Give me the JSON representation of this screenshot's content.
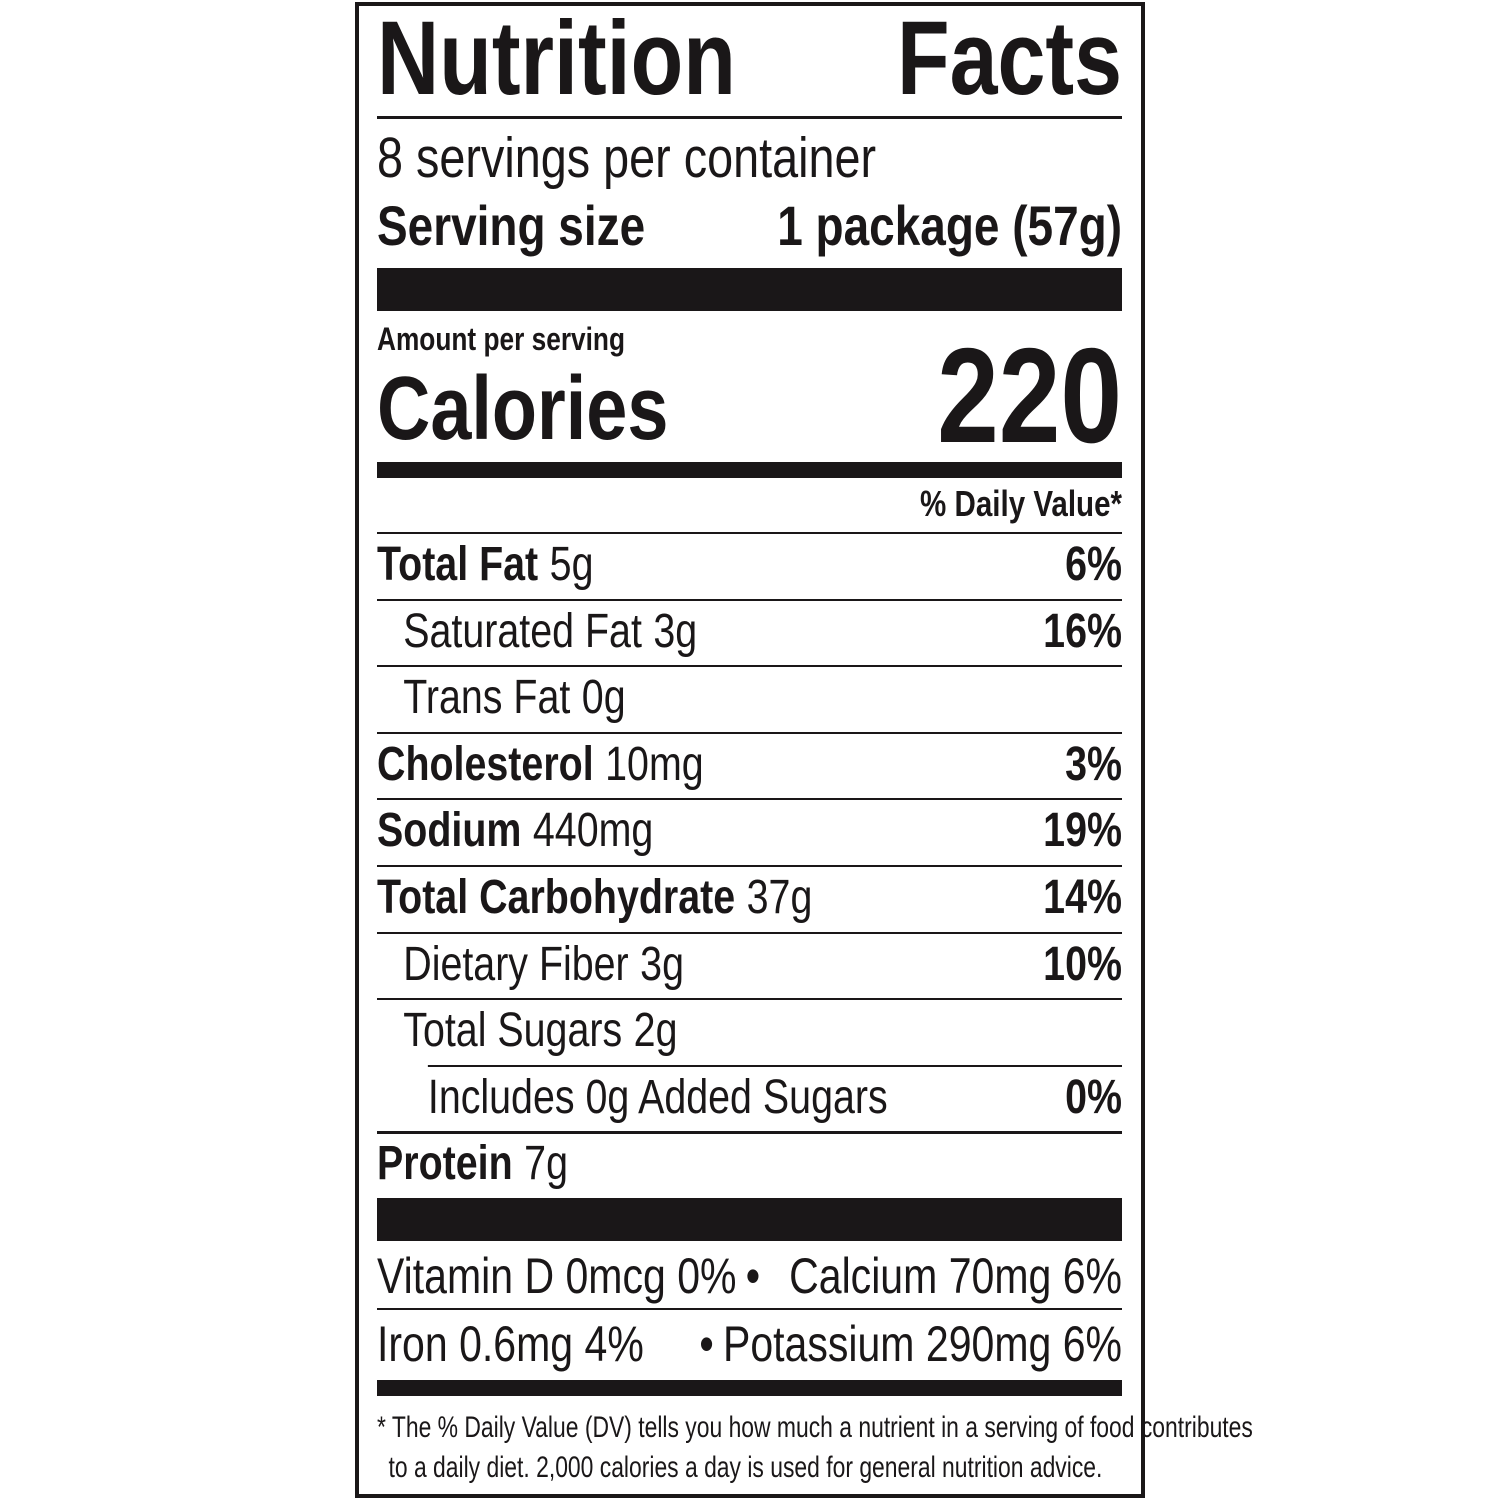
{
  "title_left": "Nutrition",
  "title_right": "Facts",
  "servings_per_container": "8 servings per container",
  "serving_size_label": "Serving size",
  "serving_size_value": "1 package (57g)",
  "amount_per_serving": "Amount per serving",
  "calories_label": "Calories",
  "calories_value": "220",
  "daily_value_header": "% Daily Value*",
  "nutrients": [
    {
      "name": "Total Fat",
      "amount": "5g",
      "dv": "6%"
    },
    {
      "name": "Saturated Fat",
      "amount": "3g",
      "dv": "16%"
    },
    {
      "name": "Trans Fat",
      "amount": "0g",
      "dv": ""
    },
    {
      "name": "Cholesterol",
      "amount": "10mg",
      "dv": "3%"
    },
    {
      "name": "Sodium",
      "amount": "440mg",
      "dv": "19%"
    },
    {
      "name": "Total Carbohydrate",
      "amount": "37g",
      "dv": "14%"
    },
    {
      "name": "Dietary Fiber",
      "amount": "3g",
      "dv": "10%"
    },
    {
      "name": "Total Sugars",
      "amount": "2g",
      "dv": ""
    },
    {
      "name": "Includes 0g Added Sugars",
      "amount": "",
      "dv": "0%"
    },
    {
      "name": "Protein",
      "amount": "7g",
      "dv": ""
    }
  ],
  "micros": [
    {
      "left": "Vitamin D  0mcg  0%",
      "sep": "•",
      "right": "Calcium  70mg  6%"
    },
    {
      "left": "Iron  0.6mg  4%",
      "sep": "•",
      "right": "Potassium  290mg  6%"
    }
  ],
  "footnote": [
    "* The % Daily Value (DV) tells you how much a nutrient in a serving of food contributes",
    "to a daily diet. 2,000 calories a day is used for general nutrition advice."
  ]
}
